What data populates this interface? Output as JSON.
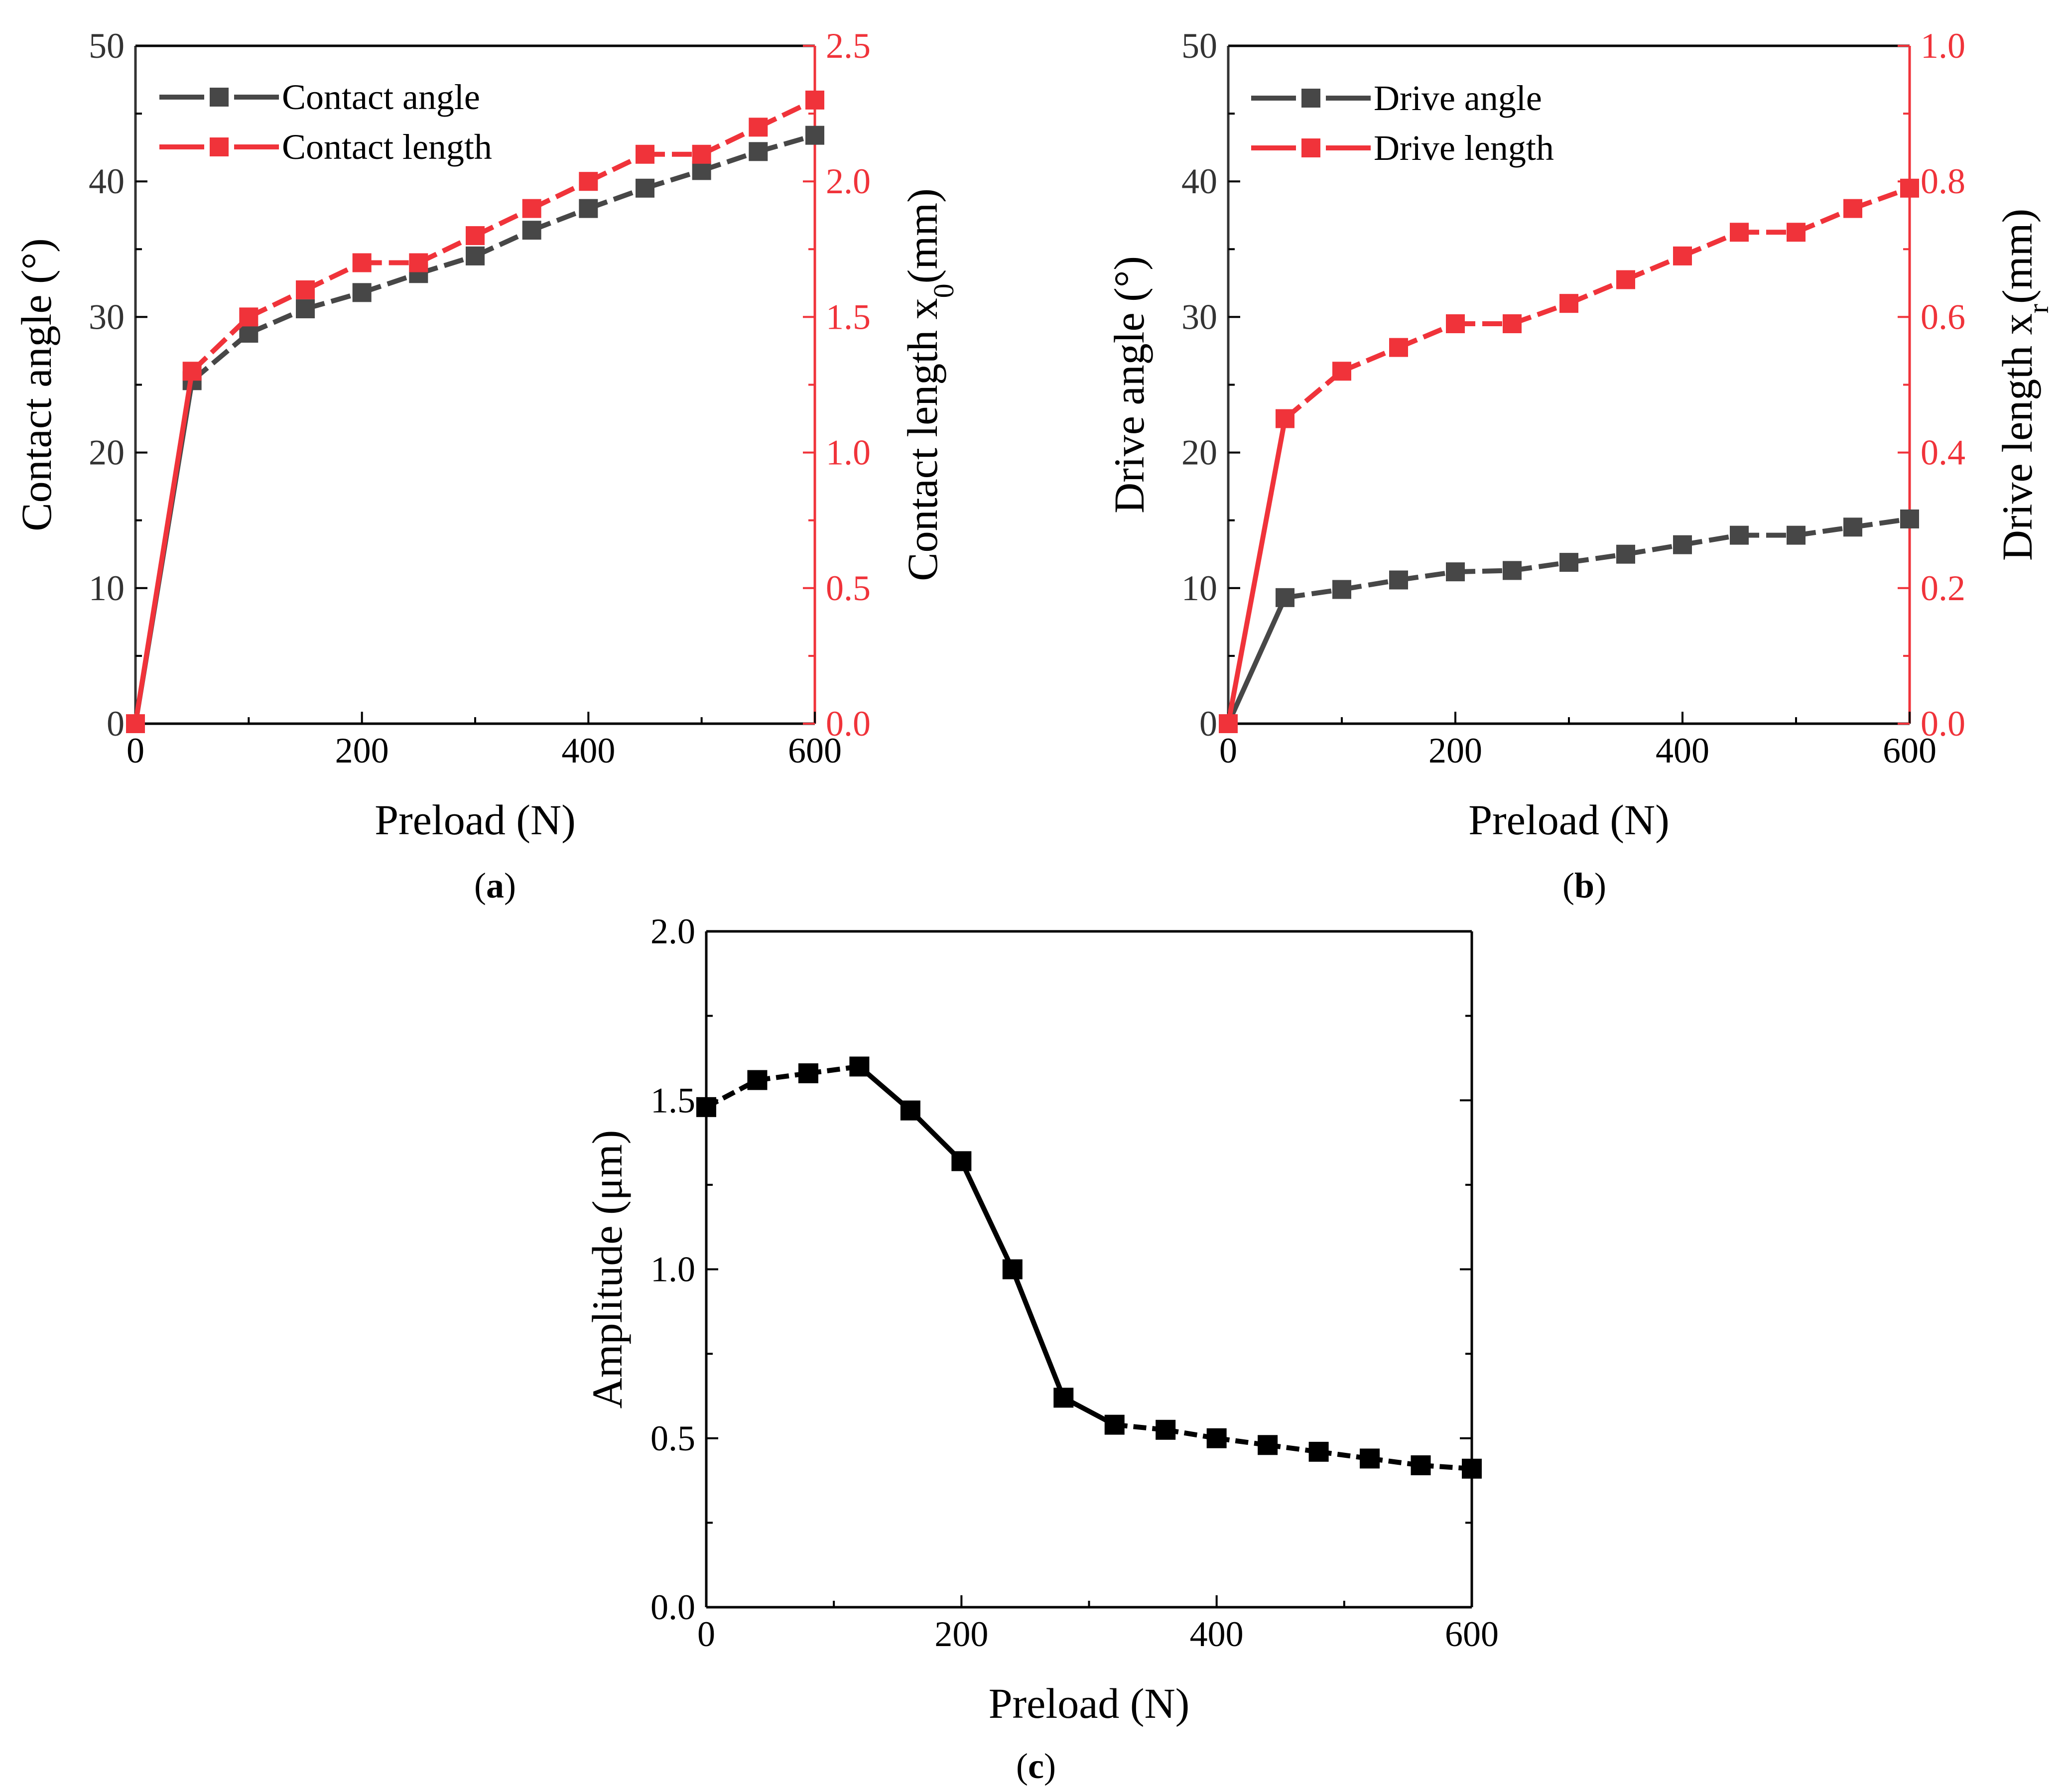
{
  "panel_labels": {
    "a": "a",
    "b": "b",
    "c": "c"
  },
  "colors": {
    "dark": "#474747",
    "red": "#f0333a",
    "black": "#000000"
  },
  "chart_data": [
    {
      "id": "a",
      "type": "line",
      "xlabel": "Preload (N)",
      "ylabel": "Contact angle (°)",
      "ylabel_right_main": "Contact length x",
      "ylabel_right_sub": "0",
      "ylabel_right_tail": "(mm)",
      "xlim": [
        0,
        600
      ],
      "ylim": [
        0,
        50
      ],
      "y2lim": [
        0,
        2.5
      ],
      "xticks": [
        "0",
        "200",
        "400",
        "600"
      ],
      "yticks": [
        "0",
        "10",
        "20",
        "30",
        "40",
        "50"
      ],
      "y2ticks": [
        "0.0",
        "0.5",
        "1.0",
        "1.5",
        "2.0",
        "2.5"
      ],
      "legend": "top-left",
      "x": [
        0,
        50,
        100,
        150,
        200,
        250,
        300,
        350,
        400,
        450,
        500,
        550,
        600
      ],
      "series": [
        {
          "name": "Contact angle",
          "axis": "left",
          "color": "#474747",
          "values": [
            0,
            25.3,
            28.8,
            30.6,
            31.8,
            33.2,
            34.5,
            36.4,
            38.0,
            39.5,
            40.8,
            42.2,
            43.4
          ]
        },
        {
          "name": "Contact length",
          "axis": "right",
          "color": "#f0333a",
          "values": [
            0,
            1.3,
            1.5,
            1.6,
            1.7,
            1.7,
            1.8,
            1.9,
            2.0,
            2.1,
            2.1,
            2.2,
            2.3
          ]
        }
      ]
    },
    {
      "id": "b",
      "type": "line",
      "xlabel": "Preload (N)",
      "ylabel": "Drive angle (°)",
      "ylabel_right_main": "Drive length x",
      "ylabel_right_sub": "r",
      "ylabel_right_tail": "(mm)",
      "xlim": [
        0,
        600
      ],
      "ylim": [
        0,
        50
      ],
      "y2lim": [
        0,
        1.0
      ],
      "xticks": [
        "0",
        "200",
        "400",
        "600"
      ],
      "yticks": [
        "0",
        "10",
        "20",
        "30",
        "40",
        "50"
      ],
      "y2ticks": [
        "0.0",
        "0.2",
        "0.4",
        "0.6",
        "0.8",
        "1.0"
      ],
      "legend": "top-left",
      "x": [
        0,
        50,
        100,
        150,
        200,
        250,
        300,
        350,
        400,
        450,
        500,
        550,
        600
      ],
      "series": [
        {
          "name": "Drive angle",
          "axis": "left",
          "color": "#474747",
          "values": [
            0,
            9.3,
            9.9,
            10.6,
            11.2,
            11.3,
            11.9,
            12.5,
            13.2,
            13.9,
            13.9,
            14.5,
            15.1
          ]
        },
        {
          "name": "Drive length",
          "axis": "right",
          "color": "#f0333a",
          "values": [
            0,
            0.45,
            0.52,
            0.555,
            0.59,
            0.59,
            0.62,
            0.655,
            0.69,
            0.725,
            0.725,
            0.76,
            0.79
          ]
        }
      ]
    },
    {
      "id": "c",
      "type": "line",
      "xlabel": "Preload (N)",
      "ylabel": "Amplitude (μm)",
      "xlim": [
        0,
        600
      ],
      "ylim": [
        0,
        2.0
      ],
      "xticks": [
        "0",
        "200",
        "400",
        "600"
      ],
      "yticks": [
        "0.0",
        "0.5",
        "1.0",
        "1.5",
        "2.0"
      ],
      "x": [
        0,
        40,
        80,
        120,
        160,
        200,
        240,
        280,
        320,
        360,
        400,
        440,
        480,
        520,
        560,
        600
      ],
      "series": [
        {
          "name": "Amplitude",
          "color": "#000000",
          "values": [
            1.48,
            1.56,
            1.58,
            1.6,
            1.47,
            1.32,
            1.0,
            0.62,
            0.54,
            0.525,
            0.5,
            0.48,
            0.46,
            0.44,
            0.42,
            0.41
          ]
        }
      ]
    }
  ]
}
